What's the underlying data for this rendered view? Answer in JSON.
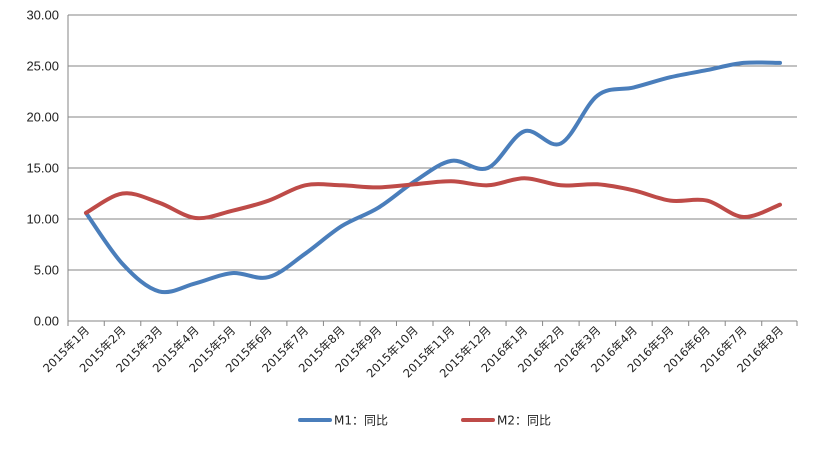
{
  "chart_data": {
    "type": "line",
    "title": "",
    "xlabel": "",
    "ylabel": "",
    "ylim": [
      0,
      30
    ],
    "yticks": [
      "0.00",
      "5.00",
      "10.00",
      "15.00",
      "20.00",
      "25.00",
      "30.00"
    ],
    "ytick_values": [
      0,
      5,
      10,
      15,
      20,
      25,
      30
    ],
    "grid": "horizontal",
    "legend_position": "bottom",
    "categories": [
      "2015年1月",
      "2015年2月",
      "2015年3月",
      "2015年4月",
      "2015年5月",
      "2015年6月",
      "2015年7月",
      "2015年8月",
      "2015年9月",
      "2015年10月",
      "2015年11月",
      "2015年12月",
      "2016年1月",
      "2016年2月",
      "2016年3月",
      "2016年4月",
      "2016年5月",
      "2016年6月",
      "2016年7月",
      "2016年8月"
    ],
    "series": [
      {
        "name": "M1：同比",
        "color": "#4a7ebb",
        "values": [
          10.6,
          5.6,
          2.9,
          3.7,
          4.7,
          4.3,
          6.6,
          9.3,
          11.1,
          13.7,
          15.7,
          15.0,
          18.6,
          17.4,
          22.1,
          22.9,
          23.9,
          24.6,
          25.3,
          25.3
        ]
      },
      {
        "name": "M2：同比",
        "color": "#be4b48",
        "values": [
          10.6,
          12.5,
          11.6,
          10.1,
          10.8,
          11.8,
          13.3,
          13.3,
          13.1,
          13.4,
          13.7,
          13.3,
          14.0,
          13.3,
          13.4,
          12.8,
          11.8,
          11.8,
          10.2,
          11.4
        ]
      }
    ]
  }
}
